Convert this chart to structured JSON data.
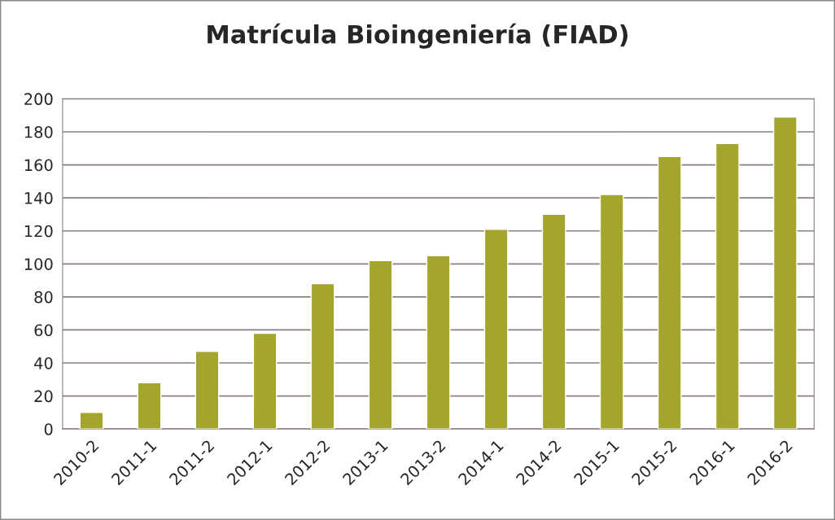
{
  "chart_data": {
    "type": "bar",
    "title": "Matrícula Bioingeniería (FIAD)",
    "categories": [
      "2010-2",
      "2011-1",
      "2011-2",
      "2012-1",
      "2012-2",
      "2013-1",
      "2013-2",
      "2014-1",
      "2014-2",
      "2015-1",
      "2015-2",
      "2016-1",
      "2016-2"
    ],
    "values": [
      10,
      28,
      47,
      58,
      88,
      102,
      105,
      121,
      130,
      142,
      165,
      173,
      189
    ],
    "color": "#a4a52c",
    "ylim": [
      0,
      200
    ],
    "yticks": [
      0,
      20,
      40,
      60,
      80,
      100,
      120,
      140,
      160,
      180,
      200
    ],
    "grid": "y"
  }
}
